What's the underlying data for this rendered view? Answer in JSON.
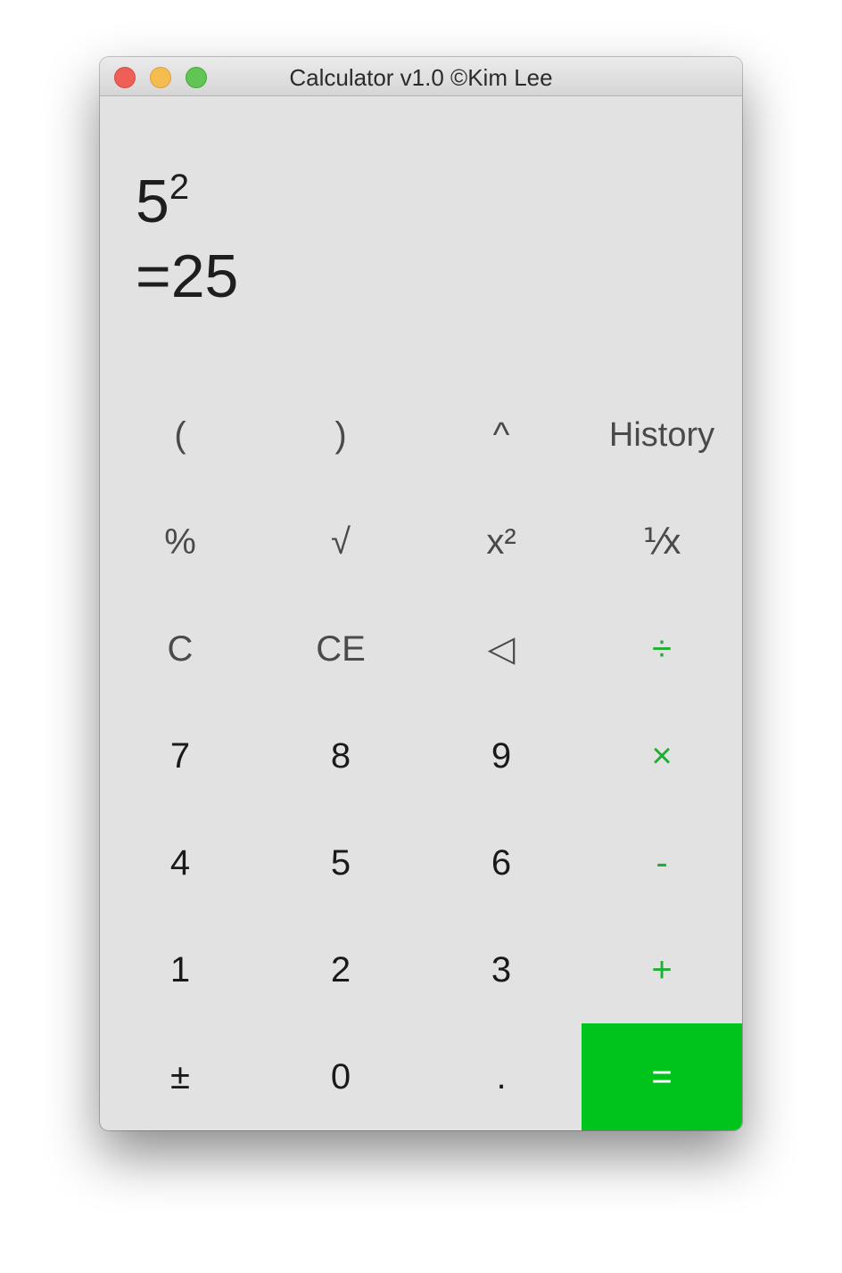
{
  "window": {
    "title": "Calculator v1.0 ©Kim Lee"
  },
  "display": {
    "expression_base": "5",
    "expression_exponent": "2",
    "result": "=25"
  },
  "keys": {
    "open_paren": "(",
    "close_paren": ")",
    "caret": "^",
    "history": "History",
    "percent": "%",
    "sqrt": "√",
    "square": "x²",
    "reciprocal": "⅟x",
    "clear": "C",
    "clear_entry": "CE",
    "backspace": "◁",
    "divide": "÷",
    "seven": "7",
    "eight": "8",
    "nine": "9",
    "multiply": "×",
    "four": "4",
    "five": "5",
    "six": "6",
    "minus": "-",
    "one": "1",
    "two": "2",
    "three": "3",
    "plus": "+",
    "plus_minus": "±",
    "zero": "0",
    "decimal": ".",
    "equals": "="
  },
  "colors": {
    "accent": "#00c41c",
    "operator": "#1fae32",
    "background": "#e2e2e2"
  }
}
